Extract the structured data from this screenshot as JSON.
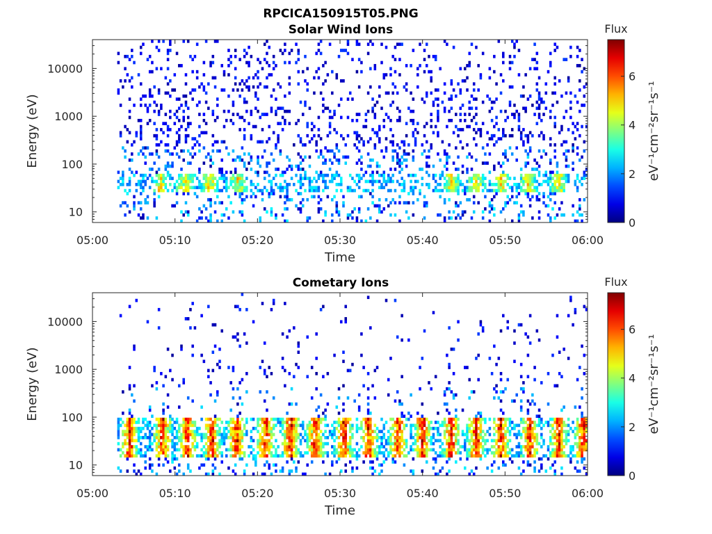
{
  "figure_title": "RPCICA150915T05.PNG",
  "chart_data": [
    {
      "type": "heatmap",
      "title": "Solar Wind Ions",
      "xlabel": "Time",
      "ylabel": "Energy (eV)",
      "x_ticks": [
        "05:00",
        "05:10",
        "05:20",
        "05:30",
        "05:40",
        "05:50",
        "06:00"
      ],
      "x_range_minutes": [
        0,
        60
      ],
      "y_scale": "log",
      "y_ticks": [
        "10",
        "100",
        "1000",
        "10000"
      ],
      "y_range": [
        6,
        40000
      ],
      "colorbar": {
        "label": "Flux",
        "unit": "eV⁻¹cm⁻²sr⁻¹s⁻¹",
        "ticks": [
          "0",
          "2",
          "4",
          "6"
        ],
        "range": [
          0,
          7.5
        ],
        "colormap": "jet"
      },
      "data_start_minute": 3,
      "main_band_energy_eV": [
        25,
        60
      ],
      "peak_flux": 5,
      "background_scatter": "dense",
      "bursts_minute": [
        8.3,
        11.2,
        14.2,
        17.6,
        43.5,
        46.5,
        49.5,
        52.8,
        56.5
      ]
    },
    {
      "type": "heatmap",
      "title": "Cometary Ions",
      "xlabel": "Time",
      "ylabel": "Energy (eV)",
      "x_ticks": [
        "05:00",
        "05:10",
        "05:20",
        "05:30",
        "05:40",
        "05:50",
        "06:00"
      ],
      "x_range_minutes": [
        0,
        60
      ],
      "y_scale": "log",
      "y_ticks": [
        "10",
        "100",
        "1000",
        "10000"
      ],
      "y_range": [
        6,
        40000
      ],
      "colorbar": {
        "label": "Flux",
        "unit": "eV⁻¹cm⁻²sr⁻¹s⁻¹",
        "ticks": [
          "0",
          "2",
          "4",
          "6"
        ],
        "range": [
          0,
          7.5
        ],
        "colormap": "jet"
      },
      "data_start_minute": 3,
      "main_band_energy_eV": [
        15,
        100
      ],
      "peak_flux": 7.2,
      "background_scatter": "sparse",
      "bursts_minute": [
        4.5,
        8.5,
        11.5,
        14.5,
        17.5,
        21,
        24,
        27,
        30.5,
        33.5,
        37,
        40,
        43.5,
        46.5,
        49.5,
        53,
        56.5,
        59.5
      ]
    }
  ]
}
